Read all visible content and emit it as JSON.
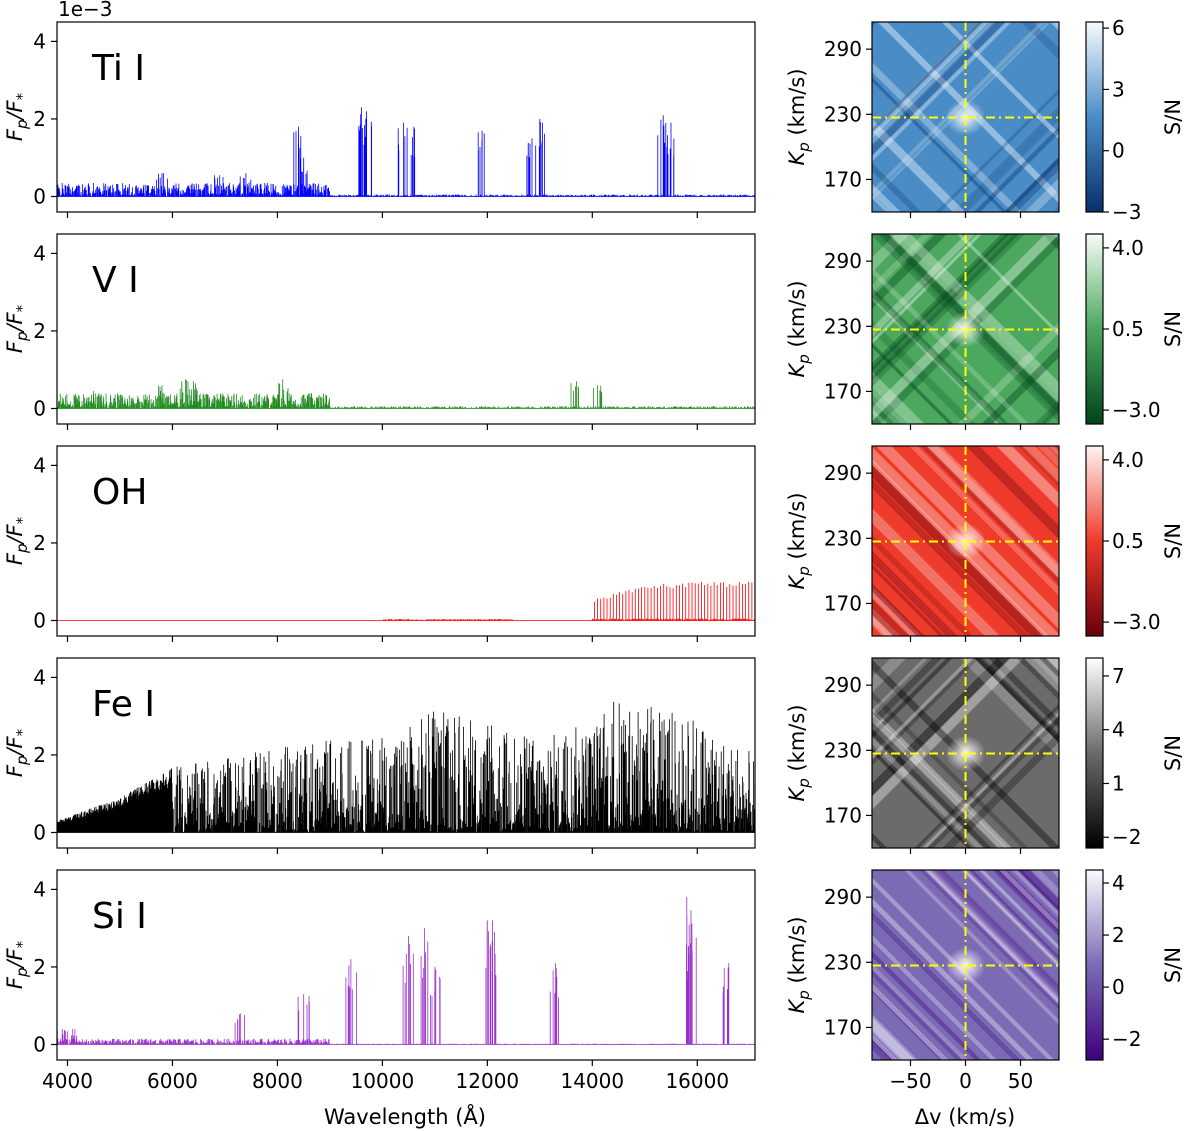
{
  "figure": {
    "offset_text": "1e−3",
    "spectrum_ylabel": "F",
    "spectrum_ylabel_sub1": "p",
    "spectrum_ylabel_mid": "/F",
    "spectrum_ylabel_sub2": "*",
    "spectrum_xlabel": "Wavelength (Å)",
    "map_ylabel": "K",
    "map_ylabel_sub": "p",
    "map_ylabel_tail": " (km/s)",
    "map_xlabel": "Δv (km/s)",
    "colorbar_label": "S/N"
  },
  "chart_data": [
    {
      "type": "line",
      "title": "",
      "panel": "spectrum",
      "xlabel": "Wavelength (Å)",
      "ylabel": "Fp/F*",
      "xlim": [
        3800,
        17100
      ],
      "ylim": [
        -0.4,
        4.5
      ],
      "y_scale_factor": "1e-3",
      "x_ticks": [
        4000,
        6000,
        8000,
        10000,
        12000,
        14000,
        16000
      ],
      "y_ticks": [
        0,
        2,
        4
      ],
      "grid": false,
      "series": [
        {
          "name": "Ti I",
          "color": "#0000ff",
          "continuum": 0.35,
          "peaks": [
            [
              5800,
              0.6
            ],
            [
              6900,
              0.55
            ],
            [
              7400,
              0.6
            ],
            [
              8400,
              1.8
            ],
            [
              8500,
              1.0
            ],
            [
              9600,
              2.3
            ],
            [
              9700,
              2.2
            ],
            [
              10400,
              1.9
            ],
            [
              10600,
              1.8
            ],
            [
              11900,
              1.7
            ],
            [
              12850,
              1.5
            ],
            [
              13000,
              2.0
            ],
            [
              15350,
              2.1
            ],
            [
              15500,
              1.9
            ]
          ]
        },
        {
          "name": "V I",
          "color": "#228b22",
          "continuum": 0.4,
          "peaks": [
            [
              4500,
              0.45
            ],
            [
              5800,
              0.6
            ],
            [
              6250,
              0.75
            ],
            [
              6400,
              0.7
            ],
            [
              8100,
              0.75
            ],
            [
              13700,
              0.7
            ],
            [
              14100,
              0.6
            ]
          ]
        },
        {
          "name": "OH",
          "color": "#ff0000",
          "continuum": 0.0,
          "band_start": 14000,
          "band_end": 17100,
          "band_peak": 1.0
        },
        {
          "name": "Fe I",
          "color": "#000000",
          "envelope": [
            [
              3800,
              0.3
            ],
            [
              5000,
              0.9
            ],
            [
              6000,
              1.7
            ],
            [
              7000,
              1.9
            ],
            [
              8000,
              2.2
            ],
            [
              9000,
              2.4
            ],
            [
              10000,
              2.5
            ],
            [
              11000,
              3.2
            ],
            [
              12000,
              2.8
            ],
            [
              13000,
              2.5
            ],
            [
              14000,
              2.9
            ],
            [
              14500,
              3.5
            ],
            [
              15000,
              3.3
            ],
            [
              16000,
              3.0
            ],
            [
              17100,
              2.0
            ]
          ]
        },
        {
          "name": "Si I",
          "color": "#9932cc",
          "continuum": 0.15,
          "peaks": [
            [
              3900,
              0.4
            ],
            [
              4100,
              0.4
            ],
            [
              7300,
              0.8
            ],
            [
              8500,
              1.3
            ],
            [
              9400,
              2.2
            ],
            [
              10500,
              2.8
            ],
            [
              10800,
              3.0
            ],
            [
              11000,
              2.0
            ],
            [
              12000,
              3.2
            ],
            [
              12100,
              3.2
            ],
            [
              13300,
              2.1
            ],
            [
              15800,
              3.8
            ],
            [
              15900,
              2.8
            ],
            [
              16600,
              2.1
            ]
          ]
        }
      ]
    },
    {
      "type": "heatmap",
      "title": "",
      "panel": "kp-vsys maps",
      "xlabel": "Δv (km/s)",
      "ylabel": "Kp (km/s)",
      "xlim": [
        -85,
        85
      ],
      "ylim": [
        140,
        315
      ],
      "x_ticks": [
        -50,
        0,
        50
      ],
      "y_ticks": [
        170,
        230,
        290
      ],
      "marker": {
        "x": 0,
        "y": 227,
        "color": "#ffff00",
        "style": "dash-dot"
      },
      "maps": [
        {
          "name": "Ti I",
          "cmap": "Blues_r",
          "dark": "#08306b",
          "mid": "#4a8dc6",
          "light": "#f7fbff",
          "cbar_ticks": [
            "6",
            "3",
            "0",
            "−3"
          ],
          "range": [
            -3,
            6.3
          ],
          "peak": 6.2
        },
        {
          "name": "V I",
          "cmap": "Greens_r",
          "dark": "#00441b",
          "mid": "#4ba85e",
          "light": "#f7fcf5",
          "cbar_ticks": [
            "4.0",
            "0.5",
            "−3.0"
          ],
          "range": [
            -3.6,
            4.6
          ],
          "peak": 4.3
        },
        {
          "name": "OH",
          "cmap": "Reds_r",
          "dark": "#67000d",
          "mid": "#ef3b2c",
          "light": "#fff5f0",
          "cbar_ticks": [
            "4.0",
            "0.5",
            "−3.0"
          ],
          "range": [
            -3.6,
            4.6
          ],
          "peak": 4.2
        },
        {
          "name": "Fe I",
          "cmap": "Greys_r",
          "dark": "#000000",
          "mid": "#6b6b6b",
          "light": "#ffffff",
          "cbar_ticks": [
            "7",
            "4",
            "1",
            "−2"
          ],
          "range": [
            -2.6,
            8.0
          ],
          "peak": 7.8
        },
        {
          "name": "Si I",
          "cmap": "Purples_r",
          "dark": "#3f007d",
          "mid": "#7b6bb5",
          "light": "#fcfbfd",
          "cbar_ticks": [
            "4",
            "2",
            "0",
            "−2"
          ],
          "range": [
            -2.8,
            4.5
          ],
          "peak": 4.4
        }
      ]
    }
  ]
}
